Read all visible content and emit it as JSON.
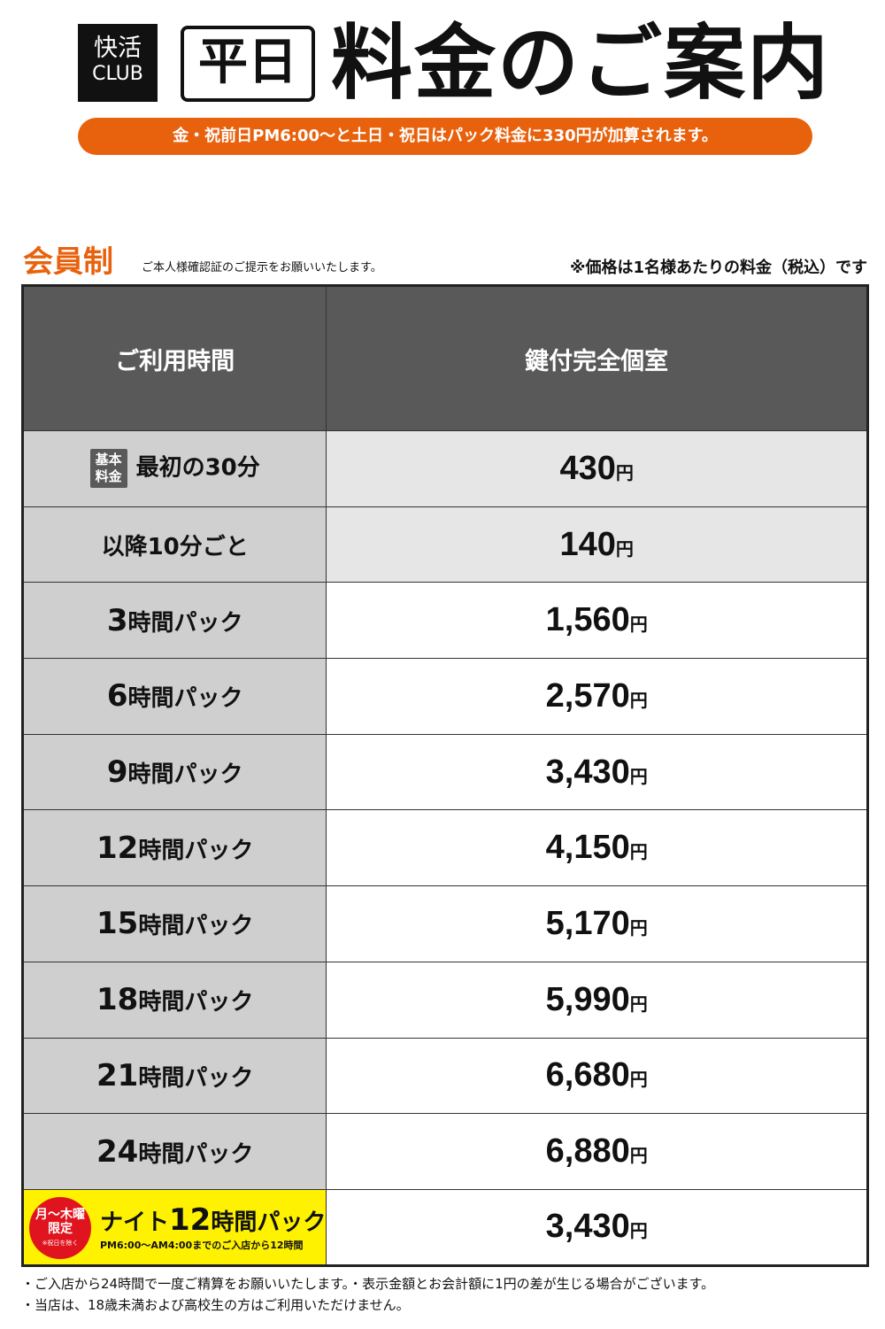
{
  "header": {
    "logo_line1": "快活",
    "logo_line2": "CLUB",
    "badge": "平日",
    "title": "料金のご案内",
    "notice": "金・祝前日PM6:00〜と土日・祝日はパック料金に330円が加算されます。"
  },
  "section": {
    "title": "会員制",
    "subtitle": "ご本人様確認証のご提示をお願いいたします。",
    "price_note": "※価格は1名様あたりの料金（税込）です"
  },
  "table": {
    "col_time": "ご利用時間",
    "col_room": "鍵付完全個室",
    "yen": "円",
    "base_badge": "基本料金",
    "rows": [
      {
        "label": "最初の30分",
        "price": "430"
      },
      {
        "label": "以降10分ごと",
        "price": "140"
      },
      {
        "num": "3",
        "label": "時間パック",
        "price": "1,560"
      },
      {
        "num": "6",
        "label": "時間パック",
        "price": "2,570"
      },
      {
        "num": "9",
        "label": "時間パック",
        "price": "3,430"
      },
      {
        "num": "12",
        "label": "時間パック",
        "price": "4,150"
      },
      {
        "num": "15",
        "label": "時間パック",
        "price": "5,170"
      },
      {
        "num": "18",
        "label": "時間パック",
        "price": "5,990"
      },
      {
        "num": "21",
        "label": "時間パック",
        "price": "6,680"
      },
      {
        "num": "24",
        "label": "時間パック",
        "price": "6,880"
      }
    ],
    "night": {
      "circle_line1": "月〜木曜",
      "circle_line2": "限定",
      "circle_note": "※祝日を除く",
      "label_a": "ナイト",
      "num": "12",
      "label_b": "時間パック",
      "sub": "PM6:00〜AM4:00までのご入店から12時間",
      "price": "3,430"
    }
  },
  "footer": {
    "note1": "・ご入店から24時間で一度ご精算をお願いいたします。・表示金額とお会計額に1円の差が生じる場合がございます。",
    "note2": "・当店は、18歳未満および高校生の方はご利用いただけません。"
  },
  "colors": {
    "accent": "#e8620e",
    "header_bg": "#595959",
    "night_bg": "#fff200",
    "circle": "#e0141e"
  }
}
